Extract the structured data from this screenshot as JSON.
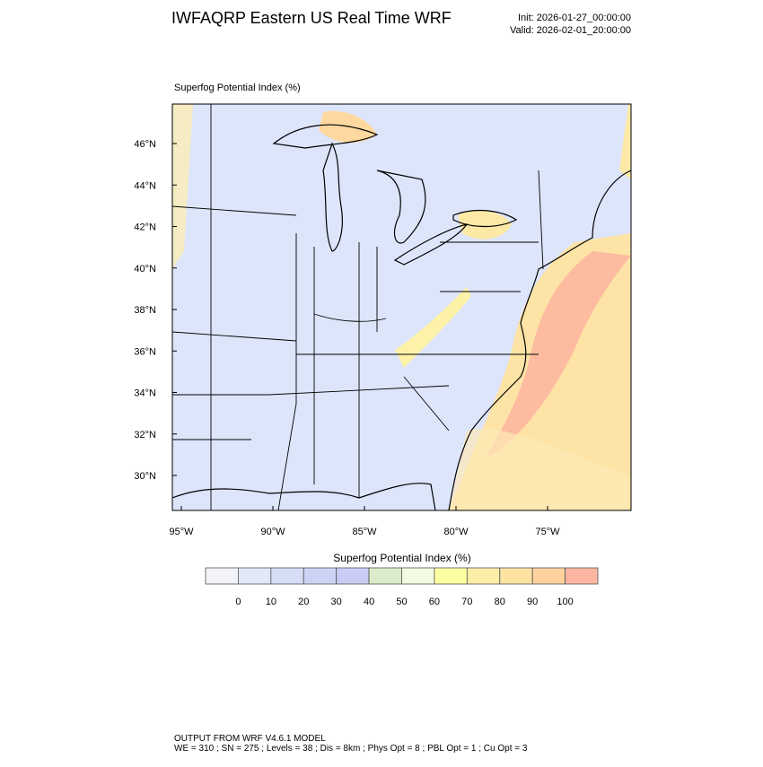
{
  "header": {
    "title": "IWFAQRP Eastern US Real Time WRF",
    "init": "Init: 2026-01-27_00:00:00",
    "valid": "Valid: 2026-02-01_20:00:00"
  },
  "map": {
    "field_label": "Superfog Potential Index   (%)",
    "lat_labels": [
      "46°N",
      "44°N",
      "42°N",
      "40°N",
      "38°N",
      "36°N",
      "34°N",
      "32°N",
      "30°N"
    ],
    "lon_labels": [
      "95°W",
      "90°W",
      "85°W",
      "80°W",
      "75°W"
    ]
  },
  "colorbar": {
    "title": "Superfog Potential Index  (%)",
    "colors": [
      "#f1f3f9",
      "#e3e8f8",
      "#d6ddf6",
      "#ccd4f5",
      "#c9cdf5",
      "#dbeccb",
      "#f3fbe2",
      "#fefea3",
      "#fdeea7",
      "#fde2a2",
      "#fdd29c",
      "#fdb7a0"
    ],
    "ticks": [
      0,
      10,
      20,
      30,
      40,
      50,
      60,
      70,
      80,
      90,
      100
    ]
  },
  "footer": {
    "line1": "OUTPUT FROM WRF V4.6.1 MODEL",
    "line2": "WE = 310 ; SN = 275 ; Levels = 38 ; Dis = 8km ; Phys Opt = 8 ; PBL Opt = 1 ; Cu Opt = 3"
  }
}
